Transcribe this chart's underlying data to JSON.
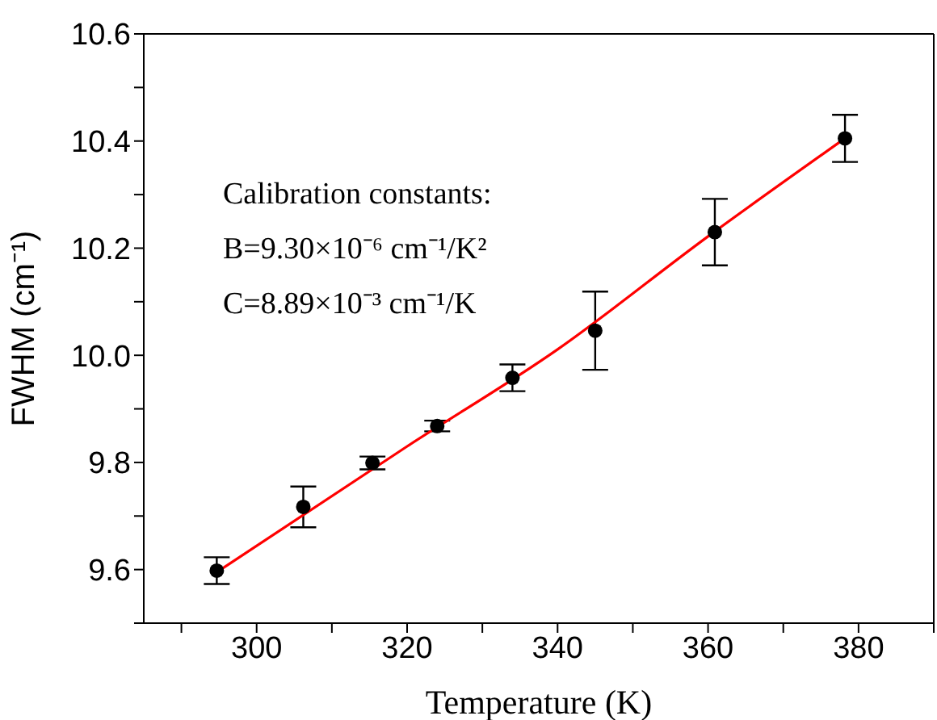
{
  "chart_data": {
    "type": "scatter",
    "xlabel": "Temperature (K)",
    "ylabel": "FWHM (cm⁻¹)",
    "annotations": [
      "Calibration constants:",
      "B=9.30×10⁻⁶ cm⁻¹/K²",
      "C=8.89×10⁻³ cm⁻¹/K"
    ],
    "series": [
      {
        "marker": "circle",
        "color": "#000000",
        "x": [
          294.7,
          306.2,
          315.4,
          324,
          334,
          345,
          360.9,
          378.2
        ],
        "values": [
          9.598,
          9.717,
          9.799,
          9.868,
          9.958,
          10.046,
          10.23,
          10.405
        ],
        "errors": [
          0.025,
          0.038,
          0.012,
          0.01,
          0.025,
          0.073,
          0.062,
          0.044
        ]
      },
      {
        "type": "line",
        "marker": "none",
        "color": "#ff0000",
        "x": [
          294.7,
          320,
          340,
          360,
          378.2
        ],
        "values": [
          9.595,
          9.83,
          10.011,
          10.222,
          10.405
        ]
      }
    ],
    "xlim": [
      285,
      390
    ],
    "xticks": [
      {
        "value": 290,
        "label": null
      },
      300,
      {
        "value": 310,
        "label": null
      },
      320,
      {
        "value": 330,
        "label": null
      },
      340,
      {
        "value": 350,
        "label": null
      },
      360,
      {
        "value": 370,
        "label": null
      },
      380,
      {
        "value": 390,
        "label": null
      }
    ],
    "ylim": [
      9.5,
      10.6
    ],
    "yticks": [
      {
        "value": 9.5,
        "label": null
      },
      9.6,
      {
        "value": 9.7,
        "label": null
      },
      9.8,
      {
        "value": 9.9,
        "label": null
      },
      {
        "value": 10,
        "label": "10.0"
      },
      {
        "value": 10.1,
        "label": null
      },
      10.2,
      {
        "value": 10.3,
        "label": null
      },
      10.4,
      {
        "value": 10.5,
        "label": null
      },
      10.6
    ],
    "grid": false,
    "legend": false,
    "line_style": "solid"
  }
}
